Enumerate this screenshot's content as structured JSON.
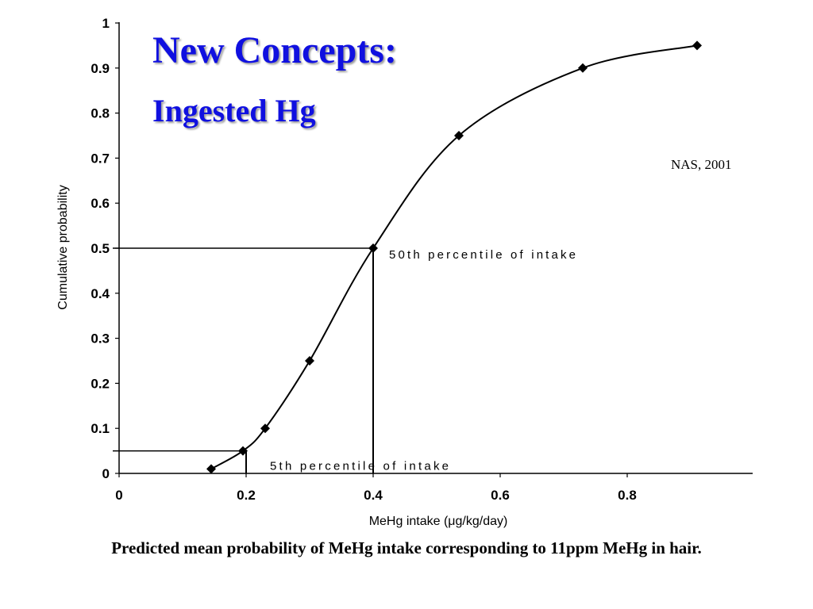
{
  "slide": {
    "title_line1": "New Concepts:",
    "title_line2": "Ingested Hg",
    "source": "NAS, 2001",
    "caption": "Predicted mean probability of MeHg intake corresponding to 11ppm MeHg in hair.",
    "title_color": "#1010e0"
  },
  "chart_data": {
    "type": "line",
    "xlabel": "MeHg intake (μg/kg/day)",
    "ylabel": "Cumulative probability",
    "xlim": [
      0,
      1.0
    ],
    "ylim": [
      0,
      1
    ],
    "x_ticks": [
      "0",
      "0.2",
      "0.4",
      "0.6",
      "0.8"
    ],
    "x_tick_values": [
      0,
      0.2,
      0.4,
      0.6,
      0.8
    ],
    "y_ticks": [
      "0",
      "0.1",
      "0.2",
      "0.3",
      "0.4",
      "0.5",
      "0.6",
      "0.7",
      "0.8",
      "0.9",
      "1"
    ],
    "y_tick_values": [
      0,
      0.1,
      0.2,
      0.3,
      0.4,
      0.5,
      0.6,
      0.7,
      0.8,
      0.9,
      1
    ],
    "grid": false,
    "series": [
      {
        "x": [
          0.145,
          0.195,
          0.23,
          0.3,
          0.4,
          0.535,
          0.73,
          0.91
        ],
        "y": [
          0.01,
          0.05,
          0.1,
          0.25,
          0.5,
          0.75,
          0.9,
          0.95
        ]
      }
    ],
    "annotations": [
      {
        "text": "50th percentile of intake",
        "x": 0.4,
        "y": 0.5
      },
      {
        "text": "5th percentile of intake",
        "x": 0.2,
        "y": 0.05
      }
    ]
  }
}
